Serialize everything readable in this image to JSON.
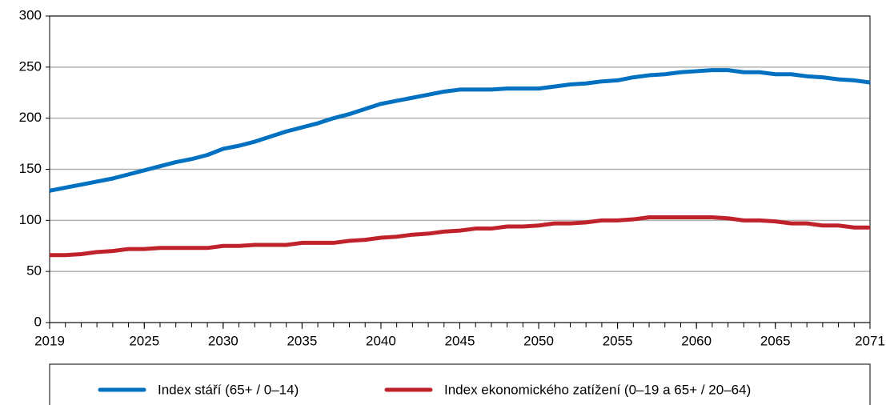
{
  "chart_data": {
    "type": "line",
    "x": [
      2019,
      2020,
      2021,
      2022,
      2023,
      2024,
      2025,
      2026,
      2027,
      2028,
      2029,
      2030,
      2031,
      2032,
      2033,
      2034,
      2035,
      2036,
      2037,
      2038,
      2039,
      2040,
      2041,
      2042,
      2043,
      2044,
      2045,
      2046,
      2047,
      2048,
      2049,
      2050,
      2051,
      2052,
      2053,
      2054,
      2055,
      2056,
      2057,
      2058,
      2059,
      2060,
      2061,
      2062,
      2063,
      2064,
      2065,
      2066,
      2067,
      2068,
      2069,
      2070,
      2071
    ],
    "series": [
      {
        "name": "Index stáří (65+ / 0–14)",
        "color": "#0070c0",
        "values": [
          129,
          132,
          135,
          138,
          141,
          145,
          149,
          153,
          157,
          160,
          164,
          170,
          173,
          177,
          182,
          187,
          191,
          195,
          200,
          204,
          209,
          214,
          217,
          220,
          223,
          226,
          228,
          228,
          228,
          229,
          229,
          229,
          231,
          233,
          234,
          236,
          237,
          240,
          242,
          243,
          245,
          246,
          247,
          247,
          245,
          245,
          243,
          243,
          241,
          240,
          238,
          237,
          235
        ]
      },
      {
        "name": "Index ekonomického zatížení (0–19 a 65+ / 20–64)",
        "color": "#c0222b",
        "values": [
          66,
          66,
          67,
          69,
          70,
          72,
          72,
          73,
          73,
          73,
          73,
          75,
          75,
          76,
          76,
          76,
          78,
          78,
          78,
          80,
          81,
          83,
          84,
          86,
          87,
          89,
          90,
          92,
          92,
          94,
          94,
          95,
          97,
          97,
          98,
          100,
          100,
          101,
          103,
          103,
          103,
          103,
          103,
          102,
          100,
          100,
          99,
          97,
          97,
          95,
          95,
          93,
          93
        ]
      }
    ],
    "xlim": [
      2019,
      2071
    ],
    "xticks": [
      2019,
      2025,
      2030,
      2035,
      2040,
      2045,
      2050,
      2055,
      2060,
      2065,
      2071
    ],
    "ylim": [
      0,
      300
    ],
    "yticks": [
      0,
      50,
      100,
      150,
      200,
      250,
      300
    ],
    "grid": true
  }
}
